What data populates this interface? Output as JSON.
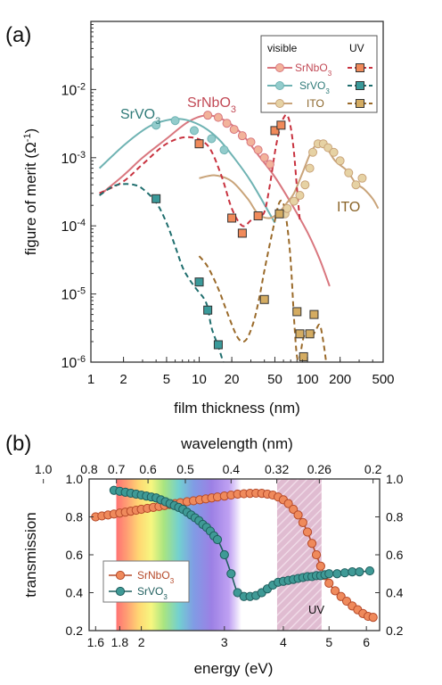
{
  "chart_data": [
    {
      "type": "line",
      "panel_label": "(a)",
      "xlabel": "film thickness (nm)",
      "ylabel": "figure of merit (Ω-1)",
      "x_scale": "log",
      "y_scale": "log",
      "xlim": [
        1,
        500
      ],
      "ylim": [
        1e-06,
        0.1
      ],
      "x_ticks": [
        1,
        2,
        5,
        10,
        20,
        50,
        100,
        200,
        500
      ],
      "x_tick_labels": [
        "1",
        "2",
        "5",
        "10",
        "20",
        "50",
        "100",
        "200",
        "500"
      ],
      "y_ticks": [
        1e-06,
        1e-05,
        0.0001,
        0.001,
        0.01
      ],
      "y_tick_labels": [
        "10-6",
        "10-5",
        "10-4",
        "10-3",
        "10-2"
      ],
      "legend": {
        "position": "top-right",
        "header_visible": "visible",
        "header_uv": "UV",
        "entries": [
          "SrNbO3",
          "SrVO3",
          "ITO"
        ]
      },
      "annotations": [
        {
          "text": "SrNbO3",
          "x": 19,
          "y": 0.0056
        },
        {
          "text": "SrVO3",
          "x": 3.3,
          "y": 0.0037
        },
        {
          "text": "ITO",
          "x": 150,
          "y": 0.00019
        }
      ],
      "series": [
        {
          "name": "SrNbO3",
          "band": "visible",
          "color": "#d9777f",
          "marker": "circle",
          "fill": "#f2b39b",
          "curve": {
            "x": [
              1.2,
              2,
              3,
              5,
              8,
              12,
              18,
              25,
              35,
              50,
              70,
              100,
              130,
              160
            ],
            "y": [
              0.00028,
              0.00055,
              0.001,
              0.0019,
              0.0034,
              0.0042,
              0.0034,
              0.0022,
              0.0011,
              0.00052,
              0.00022,
              8e-05,
              3.2e-05,
              1.3e-05
            ]
          },
          "points": {
            "x": [
              12,
              15,
              18,
              21,
              25,
              30,
              35,
              40,
              45
            ],
            "y": [
              0.0042,
              0.0039,
              0.0032,
              0.0026,
              0.0021,
              0.0017,
              0.0013,
              0.001,
              0.0008
            ]
          }
        },
        {
          "name": "SrVO3",
          "band": "visible",
          "color": "#6fb3b3",
          "marker": "circle",
          "fill": "#93cccc",
          "curve": {
            "x": [
              1.2,
              2,
              3,
              4,
              6,
              8,
              11,
              15,
              20,
              30,
              50
            ],
            "y": [
              0.0007,
              0.0015,
              0.0025,
              0.0032,
              0.0037,
              0.0035,
              0.0028,
              0.0019,
              0.0011,
              0.00045,
              0.00011
            ]
          },
          "points": {
            "x": [
              4,
              6,
              9,
              13,
              17
            ],
            "y": [
              0.003,
              0.0035,
              0.0025,
              0.0019,
              0.0013
            ]
          }
        },
        {
          "name": "ITO",
          "band": "visible",
          "color": "#c9a47a",
          "marker": "circle",
          "fill": "#e6d2a4",
          "curve": {
            "x": [
              10,
              14,
              20,
              28,
              35,
              45,
              55,
              65,
              75,
              90,
              110,
              130,
              150,
              180,
              230,
              280,
              330,
              400,
              450
            ],
            "y": [
              0.0005,
              0.00055,
              0.00045,
              0.00025,
              0.00015,
              0.00013,
              0.00016,
              0.00022,
              0.0003,
              0.0006,
              0.0013,
              0.0016,
              0.0014,
              0.0009,
              0.00065,
              0.00042,
              0.00035,
              0.00025,
              0.00018
            ]
          },
          "points": {
            "x": [
              62,
              65,
              75,
              85,
              95,
              105,
              112,
              125,
              140,
              155,
              175,
              200,
              240,
              280,
              320
            ],
            "y": [
              0.00015,
              0.00018,
              0.00023,
              0.00028,
              0.0004,
              0.0007,
              0.0012,
              0.0016,
              0.0016,
              0.0014,
              0.0012,
              0.0009,
              0.0006,
              0.0004,
              0.0005
            ]
          }
        },
        {
          "name": "SrNbO3",
          "band": "UV",
          "color": "#c8323f",
          "marker": "square",
          "fill": "#f08a5a",
          "curve": {
            "x": [
              1.2,
              2,
              3,
              5,
              8,
              12,
              16,
              20,
              25,
              30,
              35,
              40,
              45,
              50,
              55,
              60,
              65,
              70,
              75,
              80,
              85
            ],
            "y": [
              0.0003,
              0.00045,
              0.0008,
              0.0016,
              0.002,
              0.0015,
              0.00055,
              0.00018,
              0.0001,
              0.00012,
              0.00014,
              0.00016,
              0.0004,
              0.0012,
              0.0025,
              0.0038,
              0.0042,
              0.0028,
              0.0012,
              0.00035,
              0.00012
            ]
          },
          "points": {
            "x": [
              10,
              20,
              25,
              35,
              50,
              57
            ],
            "y": [
              0.0016,
              0.00013,
              7.8e-05,
              0.00014,
              0.0025,
              0.003
            ]
          }
        },
        {
          "name": "SrVO3",
          "band": "UV",
          "color": "#1f6e6e",
          "marker": "square",
          "fill": "#3a9a9a",
          "curve": {
            "x": [
              1.2,
              1.6,
              2,
              2.5,
              3,
              4,
              5,
              6,
              7,
              8,
              9,
              10,
              11,
              12,
              13,
              15,
              17
            ],
            "y": [
              0.00028,
              0.00038,
              0.00041,
              0.0004,
              0.00035,
              0.00022,
              0.00011,
              5e-05,
              2.5e-05,
              1.7e-05,
              1.3e-05,
              1.05e-05,
              8.7e-06,
              6.3e-06,
              3.2e-06,
              1.7e-06,
              9e-07
            ]
          },
          "points": {
            "x": [
              4,
              10,
              12,
              15
            ],
            "y": [
              0.00025,
              1.5e-05,
              5.8e-06,
              1.8e-06
            ]
          }
        },
        {
          "name": "ITO",
          "band": "UV",
          "color": "#9a6a2a",
          "marker": "square",
          "fill": "#d4ac62",
          "curve": {
            "x": [
              10,
              12,
              15,
              18,
              22,
              25,
              28,
              32,
              36,
              40,
              45,
              50,
              55,
              60,
              65,
              70,
              75,
              80,
              85,
              90,
              95,
              100,
              110,
              120,
              130,
              140,
              150
            ],
            "y": [
              3.6e-05,
              2.5e-05,
              1.2e-05,
              5.5e-06,
              2.5e-06,
              2e-06,
              2.3e-06,
              4e-06,
              9e-06,
              2.2e-05,
              5.5e-05,
              0.00012,
              0.00022,
              0.00021,
              0.0001,
              3e-05,
              4.5e-06,
              1.2e-06,
              1.2e-06,
              2e-06,
              2.7e-06,
              2.8e-06,
              2.4e-06,
              3e-06,
              3.5e-06,
              2e-06,
              9e-07
            ]
          },
          "points": {
            "x": [
              40,
              55,
              80,
              85,
              92,
              105,
              115
            ],
            "y": [
              8.3e-06,
              0.00015,
              5.5e-06,
              2.6e-06,
              1.2e-06,
              2.6e-06,
              5e-06
            ]
          }
        }
      ]
    },
    {
      "type": "line",
      "panel_label": "(b)",
      "xlabel": "energy (eV)",
      "ylabel": "transmission",
      "x_top_label": "wavelength (nm)",
      "x_scale": "log",
      "xlim": [
        1.55,
        6.4
      ],
      "ylim": [
        0.2,
        1.0
      ],
      "x_ticks": [
        1.6,
        1.8,
        2,
        3,
        4,
        5,
        6
      ],
      "x_tick_labels": [
        "1.6",
        "1.8",
        "2",
        "3",
        "4",
        "5",
        "6"
      ],
      "x_top_ticks": [
        1.0,
        0.8,
        0.7,
        0.6,
        0.5,
        0.4,
        0.32,
        0.26,
        0.2
      ],
      "x_top_tick_labels": [
        "1.0",
        "0.8",
        "0.7",
        "0.6",
        "0.5",
        "0.4",
        "0.32",
        "0.26",
        "0.2"
      ],
      "y_ticks": [
        0.2,
        0.4,
        0.6,
        0.8,
        1.0
      ],
      "y_tick_labels": [
        "0.2",
        "0.4",
        "0.6",
        "0.8",
        "1.0"
      ],
      "y_tick_labels_right": [
        "0.2",
        "0.4",
        "0.6",
        "0.8",
        "1.0"
      ],
      "spectrum_band_eV": [
        1.77,
        3.26
      ],
      "uv_band_eV": [
        3.88,
        4.82
      ],
      "uv_label": "UV",
      "legend": {
        "position": "bottom-left",
        "entries": [
          "SrNbO3",
          "SrVO3"
        ]
      },
      "series": [
        {
          "name": "SrNbO3",
          "color": "#b64a2a",
          "fill": "#ef8a5c",
          "x": [
            1.6,
            1.65,
            1.7,
            1.75,
            1.8,
            1.85,
            1.9,
            1.95,
            2.0,
            2.06,
            2.12,
            2.18,
            2.24,
            2.3,
            2.36,
            2.42,
            2.5,
            2.58,
            2.66,
            2.74,
            2.82,
            2.9,
            3.0,
            3.1,
            3.2,
            3.3,
            3.4,
            3.5,
            3.6,
            3.7,
            3.8,
            3.9,
            4.0,
            4.1,
            4.2,
            4.3,
            4.4,
            4.5,
            4.6,
            4.7,
            4.8,
            4.9,
            5.0,
            5.15,
            5.3,
            5.45,
            5.6,
            5.75,
            5.9,
            6.05,
            6.2
          ],
          "y": [
            0.8,
            0.805,
            0.81,
            0.815,
            0.82,
            0.825,
            0.83,
            0.835,
            0.84,
            0.845,
            0.85,
            0.855,
            0.86,
            0.865,
            0.87,
            0.875,
            0.88,
            0.885,
            0.89,
            0.895,
            0.9,
            0.905,
            0.91,
            0.915,
            0.92,
            0.922,
            0.924,
            0.925,
            0.924,
            0.92,
            0.915,
            0.905,
            0.89,
            0.87,
            0.84,
            0.81,
            0.77,
            0.72,
            0.66,
            0.6,
            0.54,
            0.49,
            0.45,
            0.41,
            0.38,
            0.355,
            0.33,
            0.31,
            0.29,
            0.275,
            0.27
          ]
        },
        {
          "name": "SrVO3",
          "color": "#1f5e5e",
          "fill": "#3f9a96",
          "x": [
            1.75,
            1.8,
            1.85,
            1.9,
            1.95,
            2.0,
            2.05,
            2.1,
            2.15,
            2.2,
            2.25,
            2.3,
            2.35,
            2.4,
            2.45,
            2.5,
            2.55,
            2.6,
            2.65,
            2.7,
            2.75,
            2.8,
            2.85,
            2.9,
            3.0,
            3.1,
            3.2,
            3.3,
            3.4,
            3.5,
            3.6,
            3.7,
            3.8,
            3.9,
            4.0,
            4.1,
            4.2,
            4.3,
            4.4,
            4.5,
            4.6,
            4.7,
            4.8,
            4.9,
            5.0,
            5.2,
            5.4,
            5.6,
            5.8,
            6.1
          ],
          "y": [
            0.94,
            0.935,
            0.93,
            0.925,
            0.92,
            0.915,
            0.91,
            0.905,
            0.9,
            0.89,
            0.88,
            0.87,
            0.86,
            0.85,
            0.84,
            0.825,
            0.81,
            0.795,
            0.78,
            0.76,
            0.745,
            0.725,
            0.7,
            0.68,
            0.6,
            0.5,
            0.4,
            0.38,
            0.38,
            0.385,
            0.4,
            0.42,
            0.44,
            0.455,
            0.46,
            0.465,
            0.47,
            0.475,
            0.48,
            0.485,
            0.485,
            0.49,
            0.49,
            0.495,
            0.5,
            0.5,
            0.505,
            0.51,
            0.51,
            0.515
          ]
        }
      ]
    }
  ]
}
